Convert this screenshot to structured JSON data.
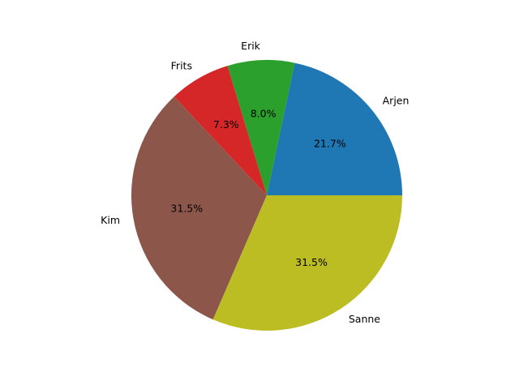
{
  "chart_data": {
    "type": "pie",
    "start_angle_deg": 0,
    "direction": "counterclockwise",
    "slices": [
      {
        "label": "Arjen",
        "percent": 21.7,
        "pct_label": "21.7%",
        "color": "#1f77b4"
      },
      {
        "label": "Erik",
        "percent": 8.0,
        "pct_label": "8.0%",
        "color": "#2ca02c"
      },
      {
        "label": "Frits",
        "percent": 7.3,
        "pct_label": "7.3%",
        "color": "#d62728"
      },
      {
        "label": "Kim",
        "percent": 31.5,
        "pct_label": "31.5%",
        "color": "#8c564b"
      },
      {
        "label": "Sanne",
        "percent": 31.5,
        "pct_label": "31.5%",
        "color": "#bcbd22"
      }
    ]
  }
}
